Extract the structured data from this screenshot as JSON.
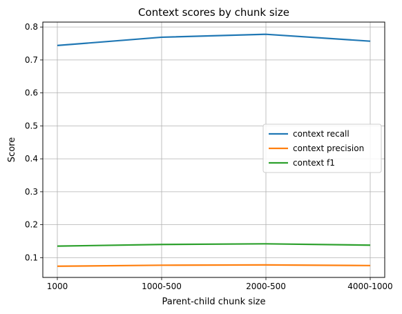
{
  "chart_data": {
    "type": "line",
    "title": "Context scores by chunk size",
    "xlabel": "Parent-child chunk size",
    "ylabel": "Score",
    "categories": [
      "1000",
      "1000-500",
      "2000-500",
      "4000-1000"
    ],
    "ylim": [
      0.04,
      0.815
    ],
    "yticks": [
      0.1,
      0.2,
      0.3,
      0.4,
      0.5,
      0.6,
      0.7,
      0.8
    ],
    "ytick_labels": [
      "0.1",
      "0.2",
      "0.3",
      "0.4",
      "0.5",
      "0.6",
      "0.7",
      "0.8"
    ],
    "grid": true,
    "legend_position": "center-right",
    "series": [
      {
        "name": "context recall",
        "color": "#1f77b4",
        "values": [
          0.744,
          0.769,
          0.778,
          0.757
        ]
      },
      {
        "name": "context precision",
        "color": "#ff7f0e",
        "values": [
          0.074,
          0.077,
          0.078,
          0.076
        ]
      },
      {
        "name": "context f1",
        "color": "#2ca02c",
        "values": [
          0.135,
          0.14,
          0.142,
          0.138
        ]
      }
    ]
  }
}
